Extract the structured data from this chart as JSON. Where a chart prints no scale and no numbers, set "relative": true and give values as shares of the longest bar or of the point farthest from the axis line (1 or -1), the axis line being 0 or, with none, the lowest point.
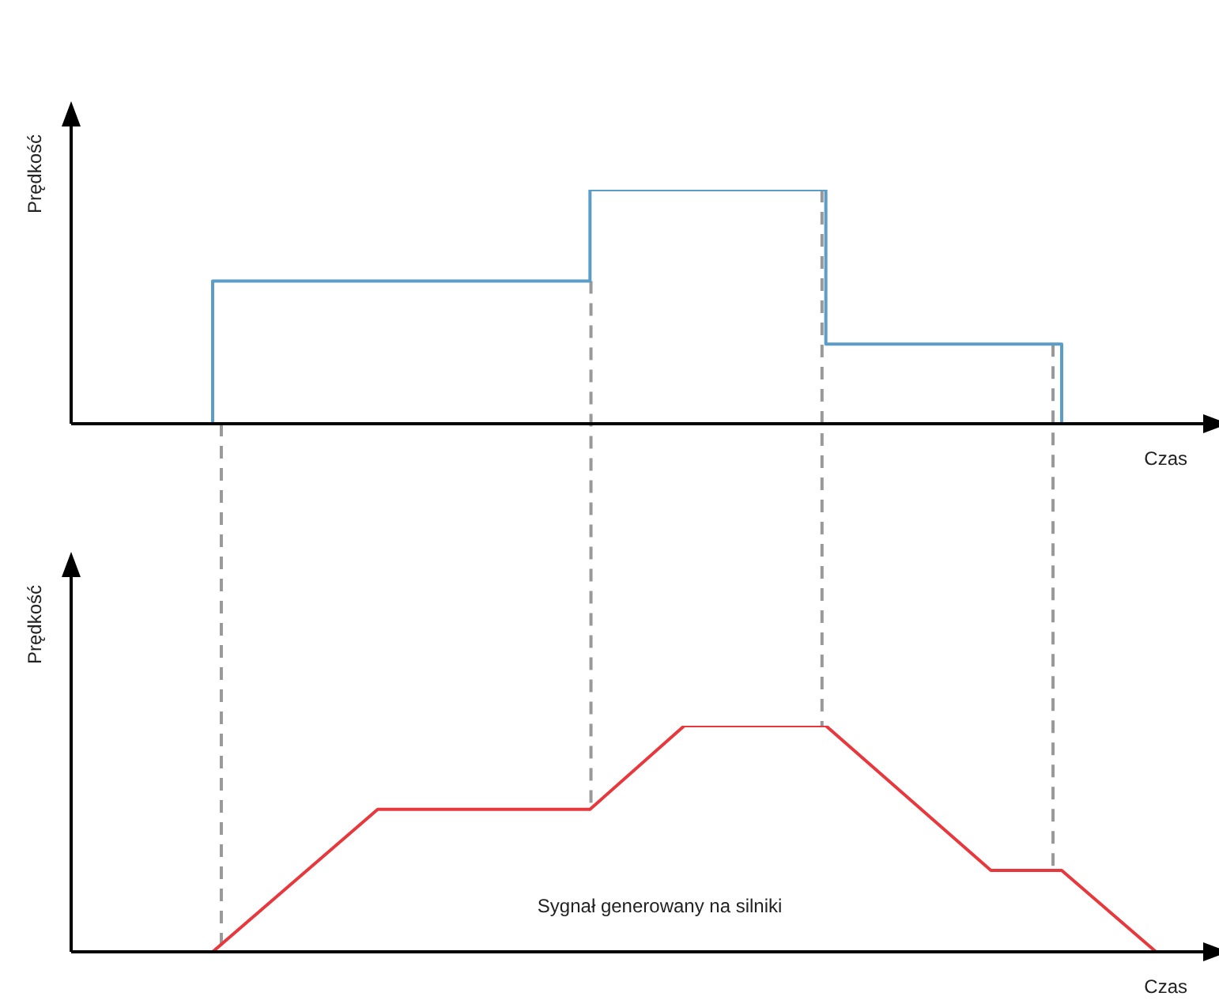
{
  "chart_data": [
    {
      "type": "step",
      "relative": true,
      "ylabel": "Prędkość",
      "xlabel": "Czas",
      "categories": [
        null,
        null,
        null,
        null,
        null,
        null,
        null,
        null,
        null,
        null,
        null,
        null,
        null,
        null,
        null,
        null,
        null,
        null,
        null,
        null,
        null,
        null,
        null,
        null,
        null,
        null,
        null,
        null,
        null,
        null,
        null,
        null,
        null,
        null,
        null,
        null,
        null,
        null,
        null,
        null,
        null,
        null,
        null,
        null,
        null,
        null,
        null,
        null,
        null
      ],
      "color": "#5b9dc9",
      "values": [
        null,
        null,
        null,
        null,
        null,
        null,
        0,
        null,
        null,
        null,
        null,
        null,
        null,
        null,
        null,
        null,
        null,
        null,
        null,
        null,
        null,
        null,
        0.61,
        null,
        null,
        null,
        null,
        null,
        null,
        null,
        null,
        null,
        1,
        null,
        null,
        null,
        null,
        null,
        null,
        null,
        null,
        null,
        0.34,
        0,
        null,
        null,
        null,
        null,
        null
      ]
    },
    {
      "type": "line",
      "relative": true,
      "ylabel": "Prędkość",
      "xlabel": "Czas",
      "annotations": [
        "Sygnał generowany na silniki"
      ],
      "categories": [
        null,
        null,
        null,
        null,
        null,
        null,
        null,
        null,
        null,
        null,
        null,
        null,
        null,
        null,
        null,
        null,
        null,
        null,
        null,
        null,
        null,
        null,
        null,
        null,
        null,
        null,
        null,
        null,
        null,
        null,
        null,
        null,
        null,
        null,
        null,
        null,
        null,
        null,
        null,
        null,
        null,
        null,
        null,
        null,
        null,
        null,
        null,
        null,
        null
      ],
      "color": "#e8383d",
      "values": [
        null,
        null,
        null,
        null,
        null,
        null,
        0,
        null,
        null,
        null,
        null,
        null,
        null,
        0.63,
        null,
        null,
        null,
        null,
        null,
        null,
        null,
        null,
        0.63,
        null,
        null,
        null,
        1,
        null,
        null,
        null,
        null,
        null,
        1,
        null,
        null,
        null,
        null,
        null,
        null,
        0.36,
        null,
        null,
        0.36,
        null,
        null,
        null,
        0,
        null,
        null
      ]
    }
  ]
}
